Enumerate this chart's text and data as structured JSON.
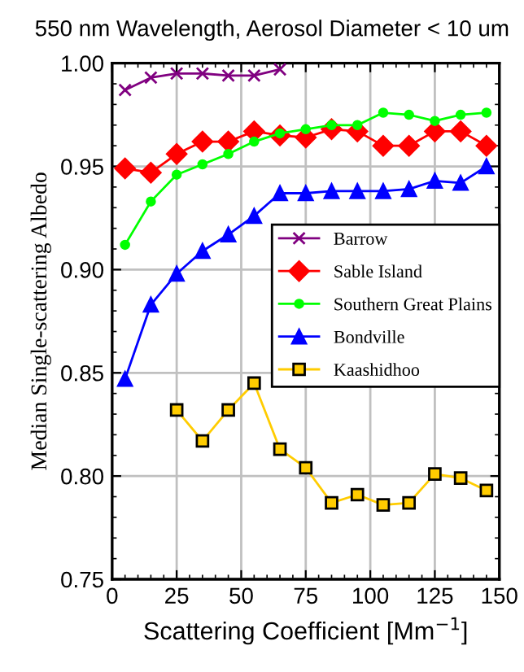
{
  "chart_data": {
    "type": "line",
    "title": "550 nm Wavelength, Aerosol Diameter < 10 um",
    "xlabel": "Scattering Coefficient [Mm$^{−1}$]",
    "ylabel": "Median Single-scattering Albedo",
    "xlim": [
      0,
      150
    ],
    "xticks": [
      0,
      25,
      50,
      75,
      100,
      125,
      150
    ],
    "ylim": [
      0.75,
      1.0
    ],
    "yticks": [
      {
        "value": 0.75,
        "label": "0.75"
      },
      {
        "value": 0.8,
        "label": "0.80"
      },
      {
        "value": 0.85,
        "label": "0.85"
      },
      {
        "value": 0.9,
        "label": "0.90"
      },
      {
        "value": 0.95,
        "label": "0.95"
      },
      {
        "value": 1.0,
        "label": "1.00"
      }
    ],
    "grid": true,
    "legend": "right",
    "series": [
      {
        "name": "Barrow",
        "color": "#800080",
        "marker": "cross",
        "x": [
          5,
          15,
          25,
          35,
          45,
          55,
          65
        ],
        "values": [
          0.987,
          0.993,
          0.995,
          0.995,
          0.994,
          0.994,
          0.997
        ]
      },
      {
        "name": "Sable Island",
        "color": "#ff0000",
        "marker": "diamond",
        "x": [
          5,
          15,
          25,
          35,
          45,
          55,
          65,
          75,
          85,
          95,
          105,
          115,
          125,
          135,
          145
        ],
        "values": [
          0.949,
          0.947,
          0.956,
          0.962,
          0.962,
          0.967,
          0.965,
          0.964,
          0.968,
          0.967,
          0.96,
          0.96,
          0.967,
          0.967,
          0.96
        ]
      },
      {
        "name": "Southern Great Plains",
        "color": "#00ff00",
        "marker": "circle",
        "x": [
          5,
          15,
          25,
          35,
          45,
          55,
          65,
          75,
          85,
          95,
          105,
          115,
          125,
          135,
          145
        ],
        "values": [
          0.912,
          0.933,
          0.946,
          0.951,
          0.956,
          0.962,
          0.966,
          0.968,
          0.97,
          0.97,
          0.976,
          0.975,
          0.972,
          0.975,
          0.976
        ]
      },
      {
        "name": "Bondville",
        "color": "#0000ff",
        "marker": "triangle",
        "x": [
          5,
          15,
          25,
          35,
          45,
          55,
          65,
          75,
          85,
          95,
          105,
          115,
          125,
          135,
          145
        ],
        "values": [
          0.847,
          0.883,
          0.898,
          0.909,
          0.917,
          0.926,
          0.937,
          0.937,
          0.938,
          0.938,
          0.938,
          0.939,
          0.943,
          0.942,
          0.95
        ]
      },
      {
        "name": "Kaashidhoo",
        "color": "#ffcc00",
        "marker": "square",
        "x": [
          25,
          35,
          45,
          55,
          65,
          75,
          85,
          95,
          105,
          115,
          125,
          135,
          145
        ],
        "values": [
          0.832,
          0.817,
          0.832,
          0.845,
          0.813,
          0.804,
          0.787,
          0.791,
          0.786,
          0.787,
          0.801,
          0.799,
          0.793
        ]
      }
    ]
  }
}
